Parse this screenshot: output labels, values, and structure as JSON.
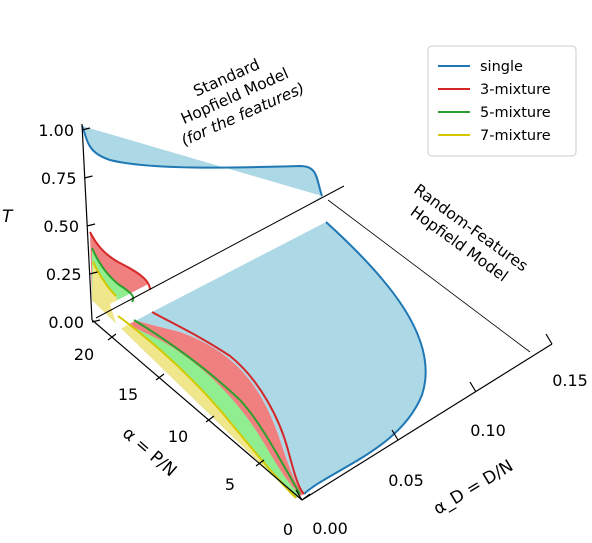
{
  "chart_data": {
    "type": "area",
    "projection": "3d",
    "axes": {
      "z": {
        "label": "T",
        "ticks": [
          "0.00",
          "0.25",
          "0.50",
          "0.75",
          "1.00"
        ],
        "range": [
          0,
          1
        ]
      },
      "alpha": {
        "label": "α = P/N",
        "ticks": [
          "0",
          "5",
          "10",
          "15",
          "20"
        ],
        "range": [
          0,
          20
        ]
      },
      "alpha_D": {
        "label": "α_D = D/N",
        "ticks": [
          "0.00",
          "0.05",
          "0.10",
          "0.15"
        ],
        "range": [
          0,
          0.15
        ]
      }
    },
    "legend": {
      "placement": "top-right",
      "entries": [
        {
          "label": "single",
          "color": "#1f77b4",
          "fill": "#add8e6"
        },
        {
          "label": "3-mixture",
          "color": "#d62728",
          "fill": "#f08080"
        },
        {
          "label": "5-mixture",
          "color": "#2ca02c",
          "fill": "#90ee90"
        },
        {
          "label": "7-mixture",
          "color": "#d4c800",
          "fill": "#f0e68c"
        }
      ]
    },
    "annotations": {
      "standard": [
        "Standard",
        "Hopfield Model",
        "(for the features)"
      ],
      "random_features": [
        "Random-Features",
        "Hopfield Model"
      ]
    }
  }
}
